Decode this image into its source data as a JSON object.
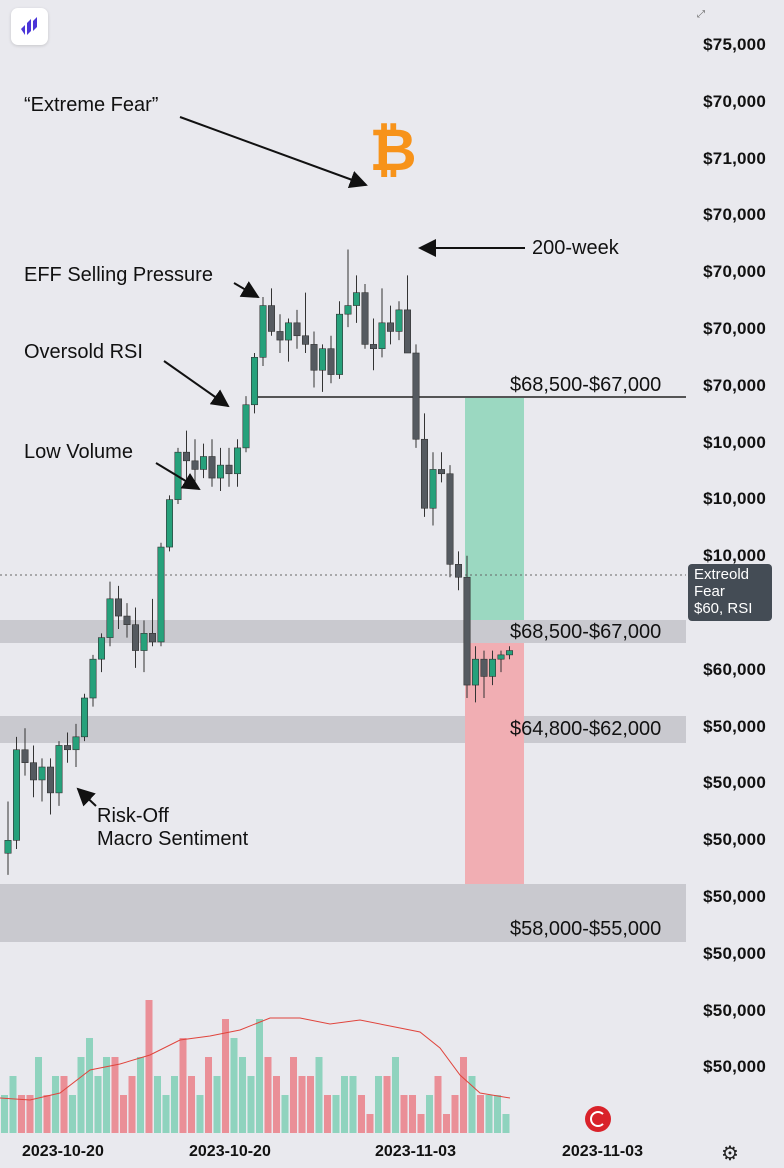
{
  "y_axis_labels": [
    "$75,000",
    "$70,000",
    "$71,000",
    "$70,000",
    "$70,000",
    "$70,000",
    "$70,000",
    "$10,000",
    "$10,000",
    "$10,000",
    "$60,000",
    "$60,000",
    "$50,000",
    "$50,000",
    "$50,000",
    "$50,000",
    "$50,000",
    "$50,000",
    "$50,000"
  ],
  "x_axis_labels": [
    "2023-10-20",
    "2023-10-20",
    "2023-11-03",
    "2023-11-03"
  ],
  "annotations": {
    "extreme_fear": "“Extreme Fear”",
    "eff_selling": "EFF Selling Pressure",
    "oversold_rsi": "Oversold RSI",
    "low_volume": "Low Volume",
    "risk_off_1": "Risk-Off",
    "risk_off_2": "Macro Sentiment",
    "two_hundred_week": "200-week"
  },
  "zones": {
    "resistance_line": "$68,500-$67,000",
    "support_1": "$68,500-$67,000",
    "support_2": "$64,800-$62,000",
    "support_3": "$58,000-$55,000"
  },
  "price_tag": [
    "Extreold",
    "Fear",
    "$60, RSI"
  ],
  "colors": {
    "up": "#26a17b",
    "down": "#555a60",
    "vol_up": "#8fd3be",
    "vol_down": "#ea8f97",
    "long_zone": "#9bd8c1",
    "short_zone": "#f1aeb3",
    "bitcoin": "#f7931a",
    "ma": "#e0443c"
  },
  "chart_data": {
    "type": "candlestick",
    "candles": [
      {
        "o": 61200,
        "h": 62400,
        "l": 60700,
        "c": 61500
      },
      {
        "o": 61500,
        "h": 63900,
        "l": 61300,
        "c": 63600
      },
      {
        "o": 63600,
        "h": 64100,
        "l": 63000,
        "c": 63300
      },
      {
        "o": 63300,
        "h": 63700,
        "l": 62500,
        "c": 62900
      },
      {
        "o": 62900,
        "h": 63400,
        "l": 62400,
        "c": 63200
      },
      {
        "o": 63200,
        "h": 63400,
        "l": 62100,
        "c": 62600
      },
      {
        "o": 62600,
        "h": 63800,
        "l": 62300,
        "c": 63700
      },
      {
        "o": 63700,
        "h": 64000,
        "l": 63300,
        "c": 63600
      },
      {
        "o": 63600,
        "h": 64200,
        "l": 63200,
        "c": 63900
      },
      {
        "o": 63900,
        "h": 64900,
        "l": 63800,
        "c": 64800
      },
      {
        "o": 64800,
        "h": 65800,
        "l": 64600,
        "c": 65700
      },
      {
        "o": 65700,
        "h": 66300,
        "l": 65400,
        "c": 66200
      },
      {
        "o": 66200,
        "h": 67500,
        "l": 66000,
        "c": 67100
      },
      {
        "o": 67100,
        "h": 67400,
        "l": 66400,
        "c": 66700
      },
      {
        "o": 66700,
        "h": 67000,
        "l": 66200,
        "c": 66500
      },
      {
        "o": 66500,
        "h": 66900,
        "l": 65500,
        "c": 65900
      },
      {
        "o": 65900,
        "h": 66600,
        "l": 65400,
        "c": 66300
      },
      {
        "o": 66300,
        "h": 67100,
        "l": 66000,
        "c": 66100
      },
      {
        "o": 66100,
        "h": 68400,
        "l": 66000,
        "c": 68300
      },
      {
        "o": 68300,
        "h": 69500,
        "l": 68200,
        "c": 69400
      },
      {
        "o": 69400,
        "h": 70600,
        "l": 69300,
        "c": 70500
      },
      {
        "o": 70500,
        "h": 71000,
        "l": 69800,
        "c": 70300
      },
      {
        "o": 70300,
        "h": 70800,
        "l": 69800,
        "c": 70100
      },
      {
        "o": 70100,
        "h": 70700,
        "l": 69900,
        "c": 70400
      },
      {
        "o": 70400,
        "h": 70800,
        "l": 69700,
        "c": 69900
      },
      {
        "o": 69900,
        "h": 70600,
        "l": 69600,
        "c": 70200
      },
      {
        "o": 70200,
        "h": 70600,
        "l": 69700,
        "c": 70000
      },
      {
        "o": 70000,
        "h": 70800,
        "l": 69700,
        "c": 70600
      },
      {
        "o": 70600,
        "h": 71800,
        "l": 70500,
        "c": 71600
      },
      {
        "o": 71600,
        "h": 72800,
        "l": 71400,
        "c": 72700
      },
      {
        "o": 72700,
        "h": 74100,
        "l": 72500,
        "c": 73900
      },
      {
        "o": 73900,
        "h": 74300,
        "l": 73200,
        "c": 73300
      },
      {
        "o": 73300,
        "h": 73700,
        "l": 72800,
        "c": 73100
      },
      {
        "o": 73100,
        "h": 73600,
        "l": 72600,
        "c": 73500
      },
      {
        "o": 73500,
        "h": 73800,
        "l": 72900,
        "c": 73200
      },
      {
        "o": 73200,
        "h": 74200,
        "l": 72800,
        "c": 73000
      },
      {
        "o": 73000,
        "h": 73300,
        "l": 72000,
        "c": 72400
      },
      {
        "o": 72400,
        "h": 73000,
        "l": 71900,
        "c": 72900
      },
      {
        "o": 72900,
        "h": 73200,
        "l": 72100,
        "c": 72300
      },
      {
        "o": 72300,
        "h": 74000,
        "l": 72200,
        "c": 73700
      },
      {
        "o": 73700,
        "h": 75200,
        "l": 73400,
        "c": 73900
      },
      {
        "o": 73900,
        "h": 74600,
        "l": 73500,
        "c": 74200
      },
      {
        "o": 74200,
        "h": 74400,
        "l": 72900,
        "c": 73000
      },
      {
        "o": 73000,
        "h": 73600,
        "l": 72400,
        "c": 72900
      },
      {
        "o": 72900,
        "h": 74300,
        "l": 72700,
        "c": 73500
      },
      {
        "o": 73500,
        "h": 73900,
        "l": 73000,
        "c": 73300
      },
      {
        "o": 73300,
        "h": 74000,
        "l": 73100,
        "c": 73800
      },
      {
        "o": 73800,
        "h": 74600,
        "l": 72900,
        "c": 72800
      },
      {
        "o": 72800,
        "h": 73000,
        "l": 70600,
        "c": 70800
      },
      {
        "o": 70800,
        "h": 71400,
        "l": 69000,
        "c": 69200
      },
      {
        "o": 69200,
        "h": 70500,
        "l": 68800,
        "c": 70100
      },
      {
        "o": 70100,
        "h": 70500,
        "l": 69800,
        "c": 70000
      },
      {
        "o": 70000,
        "h": 70200,
        "l": 67600,
        "c": 67900
      },
      {
        "o": 67900,
        "h": 68200,
        "l": 67300,
        "c": 67600
      },
      {
        "o": 67600,
        "h": 68100,
        "l": 64800,
        "c": 65100
      },
      {
        "o": 65100,
        "h": 66000,
        "l": 64700,
        "c": 65700
      },
      {
        "o": 65700,
        "h": 65900,
        "l": 64800,
        "c": 65300
      },
      {
        "o": 65300,
        "h": 65900,
        "l": 65100,
        "c": 65700
      },
      {
        "o": 65700,
        "h": 65900,
        "l": 65400,
        "c": 65800
      },
      {
        "o": 65800,
        "h": 66000,
        "l": 65700,
        "c": 65900
      }
    ],
    "volume": [
      2,
      3,
      2,
      2,
      4,
      2,
      3,
      3,
      2,
      4,
      5,
      3,
      4,
      4,
      2,
      3,
      4,
      7,
      3,
      2,
      3,
      5,
      3,
      2,
      4,
      3,
      6,
      5,
      4,
      3,
      6,
      4,
      3,
      2,
      4,
      3,
      3,
      4,
      2,
      2,
      3,
      3,
      2,
      1,
      3,
      3,
      4,
      2,
      2,
      1,
      2,
      3,
      1,
      2,
      4,
      3,
      2,
      2,
      2,
      1
    ]
  }
}
